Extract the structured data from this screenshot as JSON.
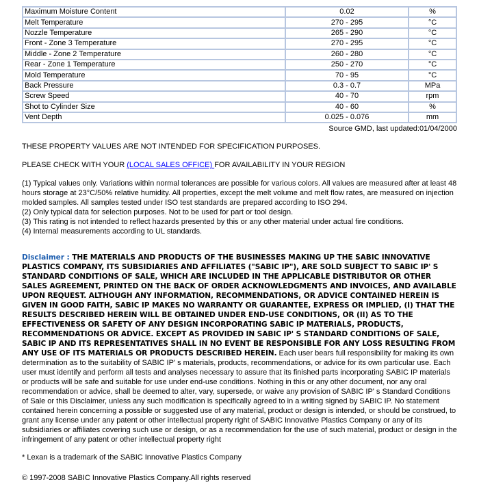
{
  "table": {
    "rows": [
      [
        "Maximum Moisture Content",
        "0.02",
        "%"
      ],
      [
        "Melt Temperature",
        "270 - 295",
        "°C"
      ],
      [
        "Nozzle Temperature",
        "265 - 290",
        "°C"
      ],
      [
        "Front - Zone 3 Temperature",
        "270 - 295",
        "°C"
      ],
      [
        "Middle - Zone 2 Temperature",
        "260 - 280",
        "°C"
      ],
      [
        "Rear - Zone 1 Temperature",
        "250 - 270",
        "°C"
      ],
      [
        "Mold Temperature",
        "70 - 95",
        "°C"
      ],
      [
        "Back Pressure",
        "0.3 - 0.7",
        "MPa"
      ],
      [
        "Screw Speed",
        "40 - 70",
        "rpm"
      ],
      [
        "Shot to Cylinder Size",
        "40 - 60",
        "%"
      ],
      [
        "Vent Depth",
        "0.025 - 0.076",
        "mm"
      ]
    ]
  },
  "source": "Source GMD, last updated:01/04/2000",
  "notice1": "THESE PROPERTY VALUES ARE NOT INTENDED FOR SPECIFICATION PURPOSES.",
  "notice2_pre": "PLEASE CHECK WITH YOUR ",
  "notice2_link": "(LOCAL SALES OFFICE) ",
  "notice2_post": "FOR AVAILABILITY IN YOUR REGION",
  "notes": [
    "(1) Typical values only. Variations within normal tolerances are possible for various colors. All values are measured after at least 48 hours storage at 23°C/50% relative humidity. All properties, except the melt volume and melt flow rates, are measured on injection molded samples. All samples tested under ISO test standards are prepared according to ISO 294.",
    "(2) Only typical data for selection purposes. Not to be used for part or tool design.",
    "(3) This rating is not intended to reflect hazards presented by this or any other material under actual fire conditions.",
    "(4) Internal measurements according to UL standards."
  ],
  "disclaimer": {
    "label": "Disclaimer : ",
    "bold": "THE MATERIALS AND PRODUCTS OF THE BUSINESSES MAKING UP THE SABIC INNOVATIVE PLASTICS COMPANY, ITS SUBSIDIARIES AND AFFILIATES (\"SABIC IP\"), ARE SOLD SUBJECT TO SABIC IP' S STANDARD CONDITIONS OF SALE, WHICH ARE INCLUDED IN THE APPLICABLE DISTRIBUTOR OR OTHER SALES AGREEMENT, PRINTED ON THE BACK OF ORDER ACKNOWLEDGMENTS AND INVOICES, AND AVAILABLE UPON REQUEST. ALTHOUGH ANY INFORMATION, RECOMMENDATIONS, OR ADVICE CONTAINED HEREIN IS GIVEN IN GOOD FAITH, SABIC IP MAKES NO WARRANTY OR GUARANTEE, EXPRESS OR IMPLIED, (I) THAT THE RESULTS DESCRIBED HEREIN WILL BE OBTAINED UNDER END-USE CONDITIONS, OR (II) AS TO THE EFFECTIVENESS OR SAFETY OF ANY DESIGN INCORPORATING SABIC IP MATERIALS, PRODUCTS, RECOMMENDATIONS OR ADVICE. EXCEPT AS PROVIDED IN SABIC IP' S STANDARD CONDITIONS OF SALE, SABIC IP AND ITS REPRESENTATIVES SHALL IN NO EVENT BE RESPONSIBLE FOR ANY LOSS RESULTING FROM ANY USE OF ITS MATERIALS OR PRODUCTS DESCRIBED HEREIN.",
    "normal": " Each user bears full responsibility for making its own determination as to the suitability of SABIC IP' s materials, products, recommendations, or advice for its own particular use. Each user must identify and perform all tests and analyses necessary to assure that its finished parts incorporating SABIC IP materials or products will be safe and suitable for use under end-use conditions. Nothing in this or any other document, nor any oral recommendation or advice, shall be deemed to alter, vary, supersede, or waive any provision of SABIC IP' s Standard Conditions of Sale or this Disclaimer, unless any such modification is specifically agreed to in a writing signed by SABIC IP. No statement contained herein concerning a possible or suggested use of any material, product or design is intended, or should be construed, to grant any license under any patent or other intellectual property right of SABIC Innovative Plastics Company or any of its subsidiaries or affiliates covering such use or design, or as a recommendation for the use of such material, product or design in the infringement of any patent or other intellectual property right"
  },
  "trademark": "* Lexan is a trademark of the SABIC Innovative Plastics Company",
  "copyright": "© 1997-2008 SABIC Innovative Plastics Company.All rights reserved"
}
